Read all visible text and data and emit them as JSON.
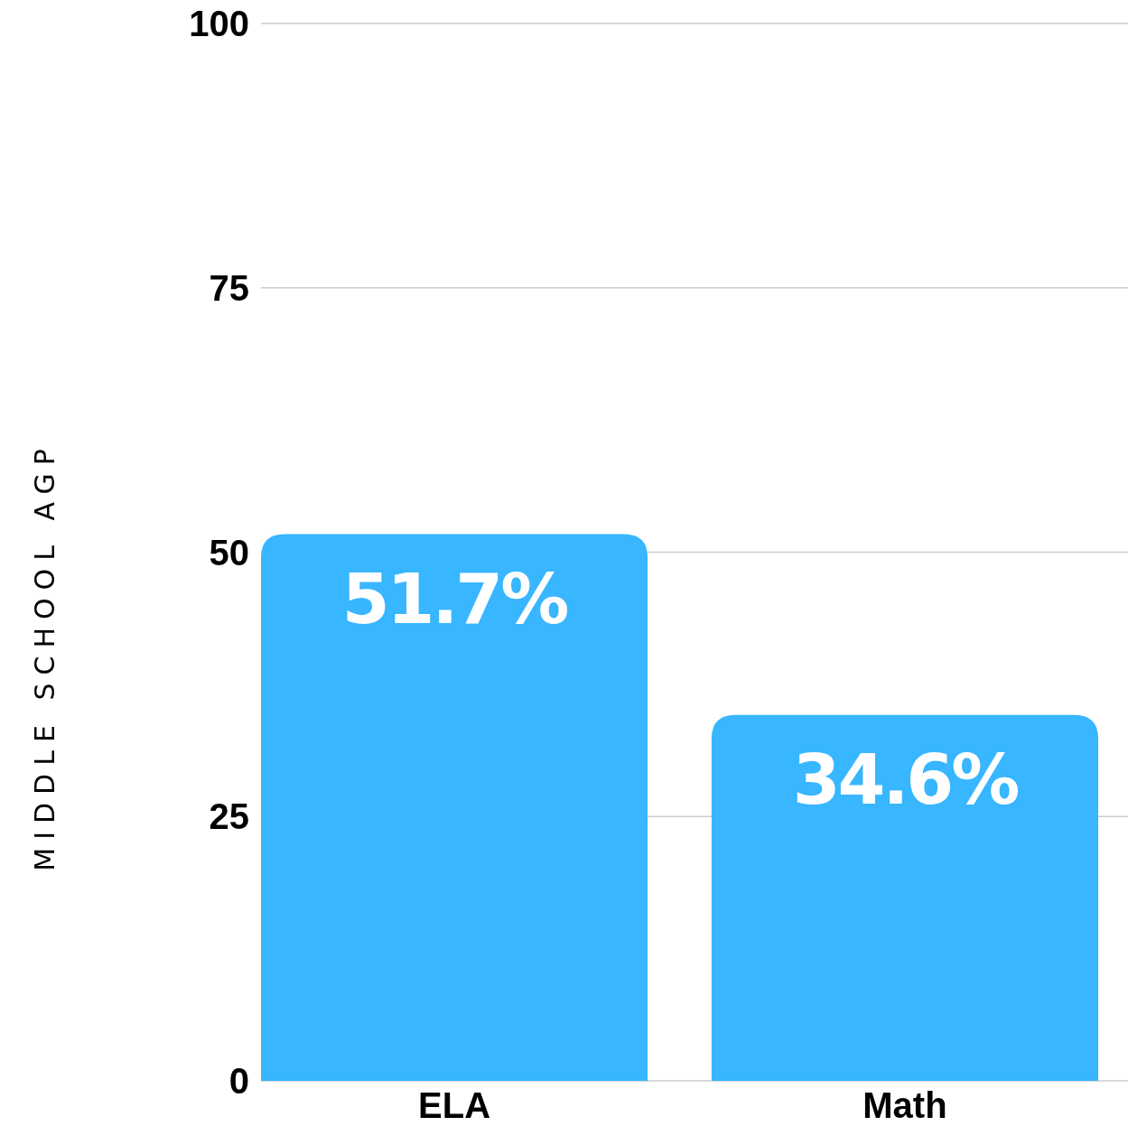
{
  "chart_data": {
    "type": "bar",
    "ylabel": "MIDDLE SCHOOL AGP",
    "categories": [
      "ELA",
      "Math"
    ],
    "values": [
      51.7,
      34.6
    ],
    "value_labels": [
      "51.7%",
      "34.6%"
    ],
    "color": "#38b6ff",
    "ylim": [
      0,
      100
    ],
    "yticks": [
      0,
      25,
      50,
      75,
      100
    ],
    "grid": "y"
  }
}
